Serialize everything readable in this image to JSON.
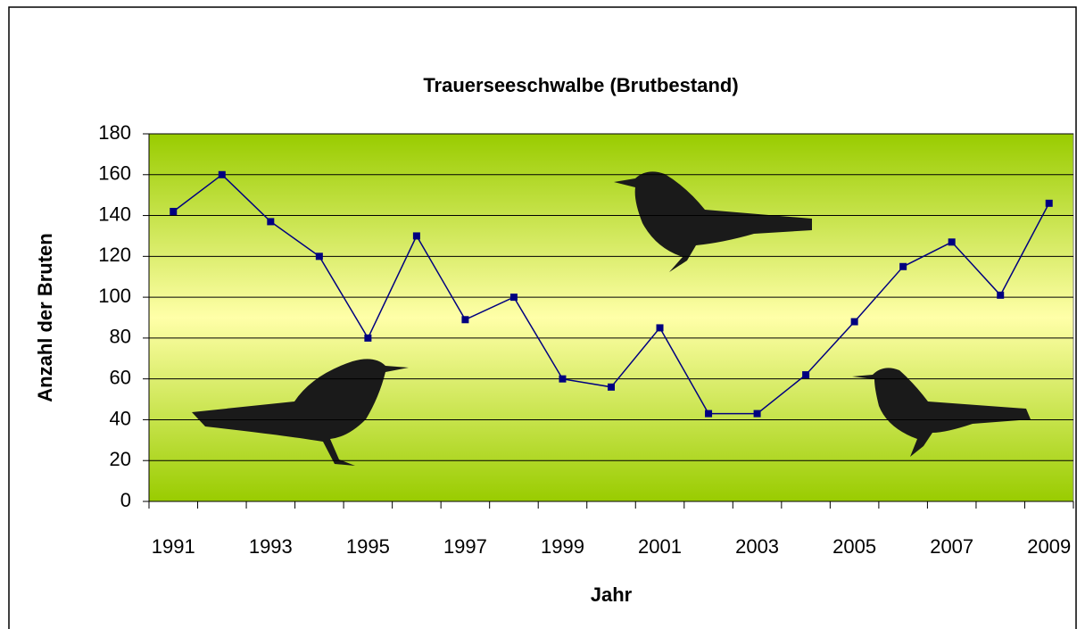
{
  "chart_data": {
    "type": "line",
    "title": "Trauerseeschwalbe (Brutbestand)",
    "x_label": "Jahr",
    "y_label": "Anzahl der Bruten",
    "categories": [
      "1991",
      null,
      "1993",
      null,
      "1995",
      null,
      "1997",
      null,
      "1999",
      null,
      "2001",
      null,
      "2003",
      null,
      "2005",
      null,
      "2007",
      null,
      "2009"
    ],
    "values": [
      142,
      160,
      137,
      120,
      80,
      130,
      89,
      100,
      60,
      56,
      85,
      43,
      43,
      62,
      88,
      115,
      127,
      101,
      146
    ],
    "color": "#000080",
    "ylim": [
      0,
      180
    ],
    "yticks": [
      0,
      20,
      40,
      60,
      80,
      100,
      120,
      140,
      160,
      180
    ],
    "grid": true
  }
}
